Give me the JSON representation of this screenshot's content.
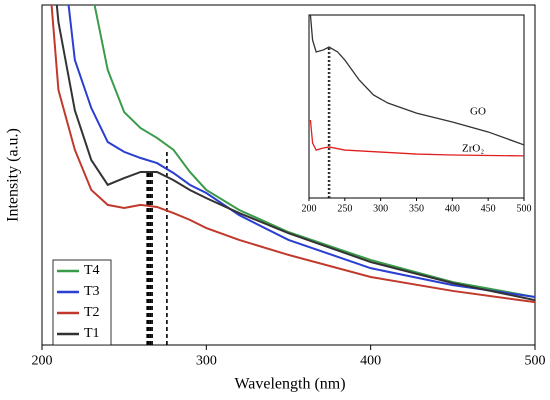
{
  "chart_data": [
    {
      "type": "line",
      "xlabel": "Wavelength (nm)",
      "ylabel": "Intensity (a.u.)",
      "x": [
        200,
        205,
        208,
        210,
        215,
        220,
        230,
        232,
        240,
        250,
        260,
        270,
        280,
        290,
        300,
        320,
        350,
        400,
        450,
        500
      ],
      "series": [
        {
          "name": "T4",
          "color": "#3a9b4a",
          "values": [
            null,
            null,
            null,
            null,
            null,
            null,
            110,
            100,
            80.9,
            68.5,
            63.8,
            60.9,
            57.4,
            50.9,
            45.6,
            39.7,
            33.2,
            25,
            18.5,
            14.1
          ]
        },
        {
          "name": "T3",
          "color": "#2a3fd0",
          "values": [
            null,
            null,
            null,
            null,
            105,
            83.8,
            69.7,
            null,
            59.7,
            56.8,
            55,
            53.5,
            50.6,
            47.1,
            44.7,
            38.2,
            30.9,
            22.6,
            17.6,
            14.1
          ]
        },
        {
          "name": "T2",
          "color": "#c0392b",
          "values": [
            null,
            105,
            null,
            75,
            null,
            57.4,
            45.6,
            null,
            41.2,
            40.3,
            41.2,
            40.6,
            38.8,
            36.8,
            34.4,
            30.9,
            26.5,
            20,
            15.9,
            12.6
          ]
        },
        {
          "name": "T1",
          "color": "#333333",
          "values": [
            null,
            null,
            105,
            95,
            null,
            69,
            54.4,
            null,
            47.1,
            49.1,
            50.9,
            50.9,
            48.5,
            45.6,
            43.2,
            38.8,
            32.9,
            24.4,
            18.2,
            13.2
          ]
        }
      ],
      "peaks": [
        {
          "x": 264,
          "y": 51
        },
        {
          "x": 265,
          "y": 51
        },
        {
          "x": 266,
          "y": 51
        },
        {
          "x": 267,
          "y": 51
        },
        {
          "x": 276,
          "y": 57
        }
      ],
      "xlim": [
        200,
        500
      ],
      "xticks": [
        200,
        300,
        400,
        500
      ],
      "ylim": [
        0,
        100
      ],
      "legend": "lower left"
    },
    {
      "type": "line",
      "x": [
        202,
        205,
        210,
        220,
        228,
        240,
        250,
        270,
        290,
        300,
        310,
        350,
        400,
        450,
        500
      ],
      "series": [
        {
          "name": "GO",
          "color": "#333333",
          "values": [
            100,
            86.3,
            79.8,
            80.9,
            82.5,
            79.8,
            75.4,
            64.5,
            56.3,
            null,
            51.9,
            46.4,
            41.5,
            36.1,
            29
          ]
        },
        {
          "name": "ZrO₂",
          "color": "#e02020",
          "values": [
            42.6,
            30,
            26.2,
            27.3,
            27.9,
            null,
            26.2,
            null,
            null,
            25.1,
            null,
            24,
            23.5,
            null,
            23
          ]
        }
      ],
      "peaks": [
        {
          "x": 227,
          "y": 82
        },
        {
          "x": 229,
          "y": 82
        }
      ],
      "xlim": [
        200,
        500
      ],
      "xticks": [
        200,
        250,
        300,
        350,
        400,
        450,
        500
      ],
      "ylim": [
        0,
        100
      ]
    }
  ]
}
